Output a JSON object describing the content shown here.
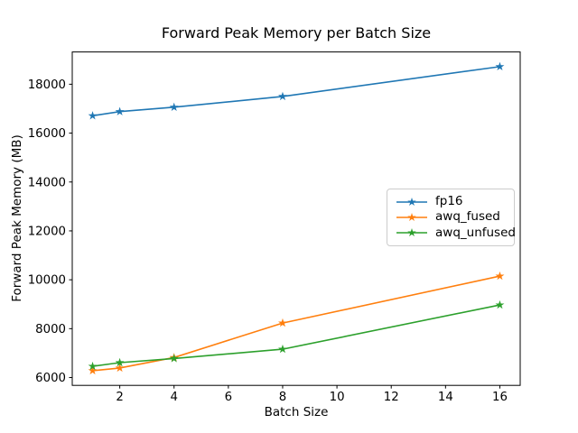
{
  "chart_data": {
    "type": "line",
    "title": "Forward Peak Memory per Batch Size",
    "xlabel": "Batch Size",
    "ylabel": "Forward Peak Memory (MB)",
    "x": [
      1,
      2,
      4,
      8,
      16
    ],
    "series": [
      {
        "name": "fp16",
        "color": "#1f77b4",
        "values": [
          16710,
          16880,
          17060,
          17500,
          18720
        ]
      },
      {
        "name": "awq_fused",
        "color": "#ff7f0e",
        "values": [
          6280,
          6390,
          6820,
          8230,
          10150
        ]
      },
      {
        "name": "awq_unfused",
        "color": "#2ca02c",
        "values": [
          6460,
          6610,
          6780,
          7160,
          8970
        ]
      }
    ],
    "marker": "star",
    "xticks": [
      2,
      4,
      6,
      8,
      10,
      12,
      14,
      16
    ],
    "yticks": [
      6000,
      8000,
      10000,
      12000,
      14000,
      16000,
      18000
    ],
    "xlim": [
      0.25,
      16.75
    ],
    "ylim": [
      5680,
      19320
    ],
    "grid": false,
    "legend_position": "center right",
    "background": "#ffffff",
    "axes_color": "#000000"
  }
}
